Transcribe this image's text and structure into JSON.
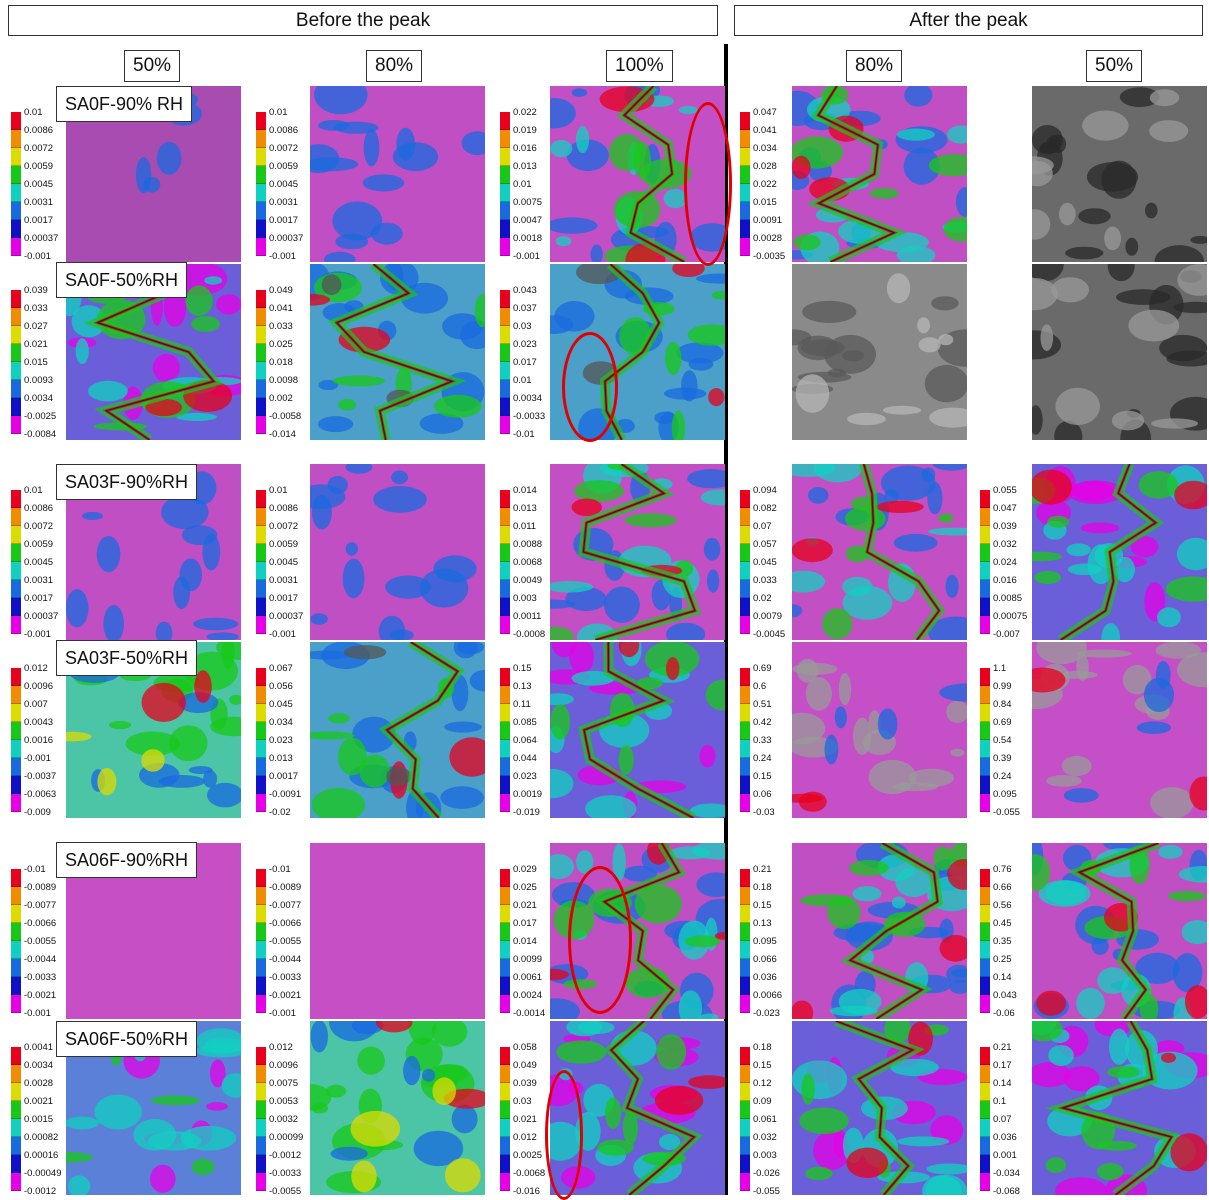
{
  "headers": {
    "before": "Before the peak",
    "after": "After the peak"
  },
  "percent_labels": [
    "50%",
    "80%",
    "100%",
    "80%",
    "50%"
  ],
  "row_labels": [
    "SA0F-90% RH",
    "SA0F-50%RH",
    "SA03F-90%RH",
    "SA03F-50%RH",
    "SA06F-90%RH",
    "SA06F-50%RH"
  ],
  "colors": {
    "red": "#e8001c",
    "orange": "#f08c00",
    "yellow": "#dcdc00",
    "green": "#18c818",
    "cyan": "#12d0c0",
    "blue": "#1a6adf",
    "navy": "#1010c8",
    "magenta": "#e600e6",
    "ellipse": "#e00000"
  },
  "scales": [
    {
      "row": 0,
      "col": 0,
      "labels": [
        "0.01",
        "0.0086",
        "0.0072",
        "0.0059",
        "0.0045",
        "0.0031",
        "0.0017",
        "0.00037",
        "-0.001"
      ]
    },
    {
      "row": 0,
      "col": 1,
      "labels": [
        "0.01",
        "0.0086",
        "0.0072",
        "0.0059",
        "0.0045",
        "0.0031",
        "0.0017",
        "0.00037",
        "-0.001"
      ]
    },
    {
      "row": 0,
      "col": 2,
      "labels": [
        "0.022",
        "0.019",
        "0.016",
        "0.013",
        "0.01",
        "0.0075",
        "0.0047",
        "0.0018",
        "-0.001"
      ]
    },
    {
      "row": 0,
      "col": 3,
      "labels": [
        "0.047",
        "0.041",
        "0.034",
        "0.028",
        "0.022",
        "0.015",
        "0.0091",
        "0.0028",
        "-0.0035"
      ]
    },
    {
      "row": 1,
      "col": 0,
      "labels": [
        "0.039",
        "0.033",
        "0.027",
        "0.021",
        "0.015",
        "0.0093",
        "0.0034",
        "-0.0025",
        "-0.0084"
      ]
    },
    {
      "row": 1,
      "col": 1,
      "labels": [
        "0.049",
        "0.041",
        "0.033",
        "0.025",
        "0.018",
        "0.0098",
        "0.002",
        "-0.0058",
        "-0.014"
      ]
    },
    {
      "row": 1,
      "col": 2,
      "labels": [
        "0.043",
        "0.037",
        "0.03",
        "0.023",
        "0.017",
        "0.01",
        "0.0034",
        "-0.0033",
        "-0.01"
      ]
    },
    {
      "row": 2,
      "col": 0,
      "labels": [
        "0.01",
        "0.0086",
        "0.0072",
        "0.0059",
        "0.0045",
        "0.0031",
        "0.0017",
        "0.00037",
        "-0.001"
      ]
    },
    {
      "row": 2,
      "col": 1,
      "labels": [
        "0.01",
        "0.0086",
        "0.0072",
        "0.0059",
        "0.0045",
        "0.0031",
        "0.0017",
        "0.00037",
        "-0.001"
      ]
    },
    {
      "row": 2,
      "col": 2,
      "labels": [
        "0.014",
        "0.013",
        "0.011",
        "0.0088",
        "0.0068",
        "0.0049",
        "0.003",
        "0.0011",
        "-0.0008"
      ]
    },
    {
      "row": 2,
      "col": 3,
      "labels": [
        "0.094",
        "0.082",
        "0.07",
        "0.057",
        "0.045",
        "0.033",
        "0.02",
        "0.0079",
        "-0.0045"
      ]
    },
    {
      "row": 2,
      "col": 4,
      "labels": [
        "0.055",
        "0.047",
        "0.039",
        "0.032",
        "0.024",
        "0.016",
        "0.0085",
        "0.00075",
        "-0.007"
      ]
    },
    {
      "row": 3,
      "col": 0,
      "labels": [
        "0.012",
        "0.0096",
        "0.007",
        "0.0043",
        "0.0016",
        "-0.001",
        "-0.0037",
        "-0.0063",
        "-0.009"
      ]
    },
    {
      "row": 3,
      "col": 1,
      "labels": [
        "0.067",
        "0.056",
        "0.045",
        "0.034",
        "0.023",
        "0.013",
        "0.0017",
        "-0.0091",
        "-0.02"
      ]
    },
    {
      "row": 3,
      "col": 2,
      "labels": [
        "0.15",
        "0.13",
        "0.11",
        "0.085",
        "0.064",
        "0.044",
        "0.023",
        "0.0019",
        "-0.019"
      ]
    },
    {
      "row": 3,
      "col": 3,
      "labels": [
        "0.69",
        "0.6",
        "0.51",
        "0.42",
        "0.33",
        "0.24",
        "0.15",
        "0.06",
        "-0.03"
      ]
    },
    {
      "row": 3,
      "col": 4,
      "labels": [
        "1.1",
        "0.99",
        "0.84",
        "0.69",
        "0.54",
        "0.39",
        "0.24",
        "0.095",
        "-0.055"
      ]
    },
    {
      "row": 4,
      "col": 0,
      "labels": [
        "-0.01",
        "-0.0089",
        "-0.0077",
        "-0.0066",
        "-0.0055",
        "-0.0044",
        "-0.0033",
        "-0.0021",
        "-0.001"
      ]
    },
    {
      "row": 4,
      "col": 1,
      "labels": [
        "-0.01",
        "-0.0089",
        "-0.0077",
        "-0.0066",
        "-0.0055",
        "-0.0044",
        "-0.0033",
        "-0.0021",
        "-0.001"
      ]
    },
    {
      "row": 4,
      "col": 2,
      "labels": [
        "0.029",
        "0.025",
        "0.021",
        "0.017",
        "0.014",
        "0.0099",
        "0.0061",
        "0.0024",
        "-0.0014"
      ]
    },
    {
      "row": 4,
      "col": 3,
      "labels": [
        "0.21",
        "0.18",
        "0.15",
        "0.13",
        "0.095",
        "0.066",
        "0.036",
        "0.0066",
        "-0.023"
      ]
    },
    {
      "row": 4,
      "col": 4,
      "labels": [
        "0.76",
        "0.66",
        "0.56",
        "0.45",
        "0.35",
        "0.25",
        "0.14",
        "0.043",
        "-0.06"
      ]
    },
    {
      "row": 5,
      "col": 0,
      "labels": [
        "0.0041",
        "0.0034",
        "0.0028",
        "0.0021",
        "0.0015",
        "0.00082",
        "0.00016",
        "-0.00049",
        "-0.0012"
      ]
    },
    {
      "row": 5,
      "col": 1,
      "labels": [
        "0.012",
        "0.0096",
        "0.0075",
        "0.0053",
        "0.0032",
        "0.00099",
        "-0.0012",
        "-0.0033",
        "-0.0055"
      ]
    },
    {
      "row": 5,
      "col": 2,
      "labels": [
        "0.058",
        "0.049",
        "0.039",
        "0.03",
        "0.021",
        "0.012",
        "0.0025",
        "-0.0068",
        "-0.016"
      ]
    },
    {
      "row": 5,
      "col": 3,
      "labels": [
        "0.18",
        "0.15",
        "0.12",
        "0.09",
        "0.061",
        "0.032",
        "0.003",
        "-0.026",
        "-0.055"
      ]
    },
    {
      "row": 5,
      "col": 4,
      "labels": [
        "0.21",
        "0.17",
        "0.14",
        "0.1",
        "0.07",
        "0.036",
        "0.001",
        "-0.034",
        "-0.068"
      ]
    }
  ],
  "panels": [
    {
      "row": 0,
      "col": 0,
      "style": "magenta-sparse"
    },
    {
      "row": 0,
      "col": 1,
      "style": "magenta-blue"
    },
    {
      "row": 0,
      "col": 2,
      "style": "magenta-crack"
    },
    {
      "row": 0,
      "col": 3,
      "style": "magenta-cracks"
    },
    {
      "row": 0,
      "col": 4,
      "style": "photo-dark"
    },
    {
      "row": 1,
      "col": 0,
      "style": "blue-crack"
    },
    {
      "row": 1,
      "col": 1,
      "style": "cyan-crack"
    },
    {
      "row": 1,
      "col": 2,
      "style": "cyan-crack"
    },
    {
      "row": 1,
      "col": 3,
      "style": "photo-gray"
    },
    {
      "row": 1,
      "col": 4,
      "style": "photo-dark"
    },
    {
      "row": 2,
      "col": 0,
      "style": "magenta-blue"
    },
    {
      "row": 2,
      "col": 1,
      "style": "magenta-blue"
    },
    {
      "row": 2,
      "col": 2,
      "style": "magenta-crack"
    },
    {
      "row": 2,
      "col": 3,
      "style": "magenta-crack"
    },
    {
      "row": 2,
      "col": 4,
      "style": "blue-crack"
    },
    {
      "row": 3,
      "col": 0,
      "style": "green-field"
    },
    {
      "row": 3,
      "col": 1,
      "style": "cyan-crack"
    },
    {
      "row": 3,
      "col": 2,
      "style": "blue-crack"
    },
    {
      "row": 3,
      "col": 3,
      "style": "magenta-photo"
    },
    {
      "row": 3,
      "col": 4,
      "style": "magenta-photo"
    },
    {
      "row": 4,
      "col": 0,
      "style": "magenta-plain"
    },
    {
      "row": 4,
      "col": 1,
      "style": "magenta-plain"
    },
    {
      "row": 4,
      "col": 2,
      "style": "magenta-cracks"
    },
    {
      "row": 4,
      "col": 3,
      "style": "magenta-cracks"
    },
    {
      "row": 4,
      "col": 4,
      "style": "magenta-cracks"
    },
    {
      "row": 5,
      "col": 0,
      "style": "blue-field"
    },
    {
      "row": 5,
      "col": 1,
      "style": "green-field"
    },
    {
      "row": 5,
      "col": 2,
      "style": "blue-crack"
    },
    {
      "row": 5,
      "col": 3,
      "style": "blue-crack"
    },
    {
      "row": 5,
      "col": 4,
      "style": "blue-crack"
    }
  ]
}
